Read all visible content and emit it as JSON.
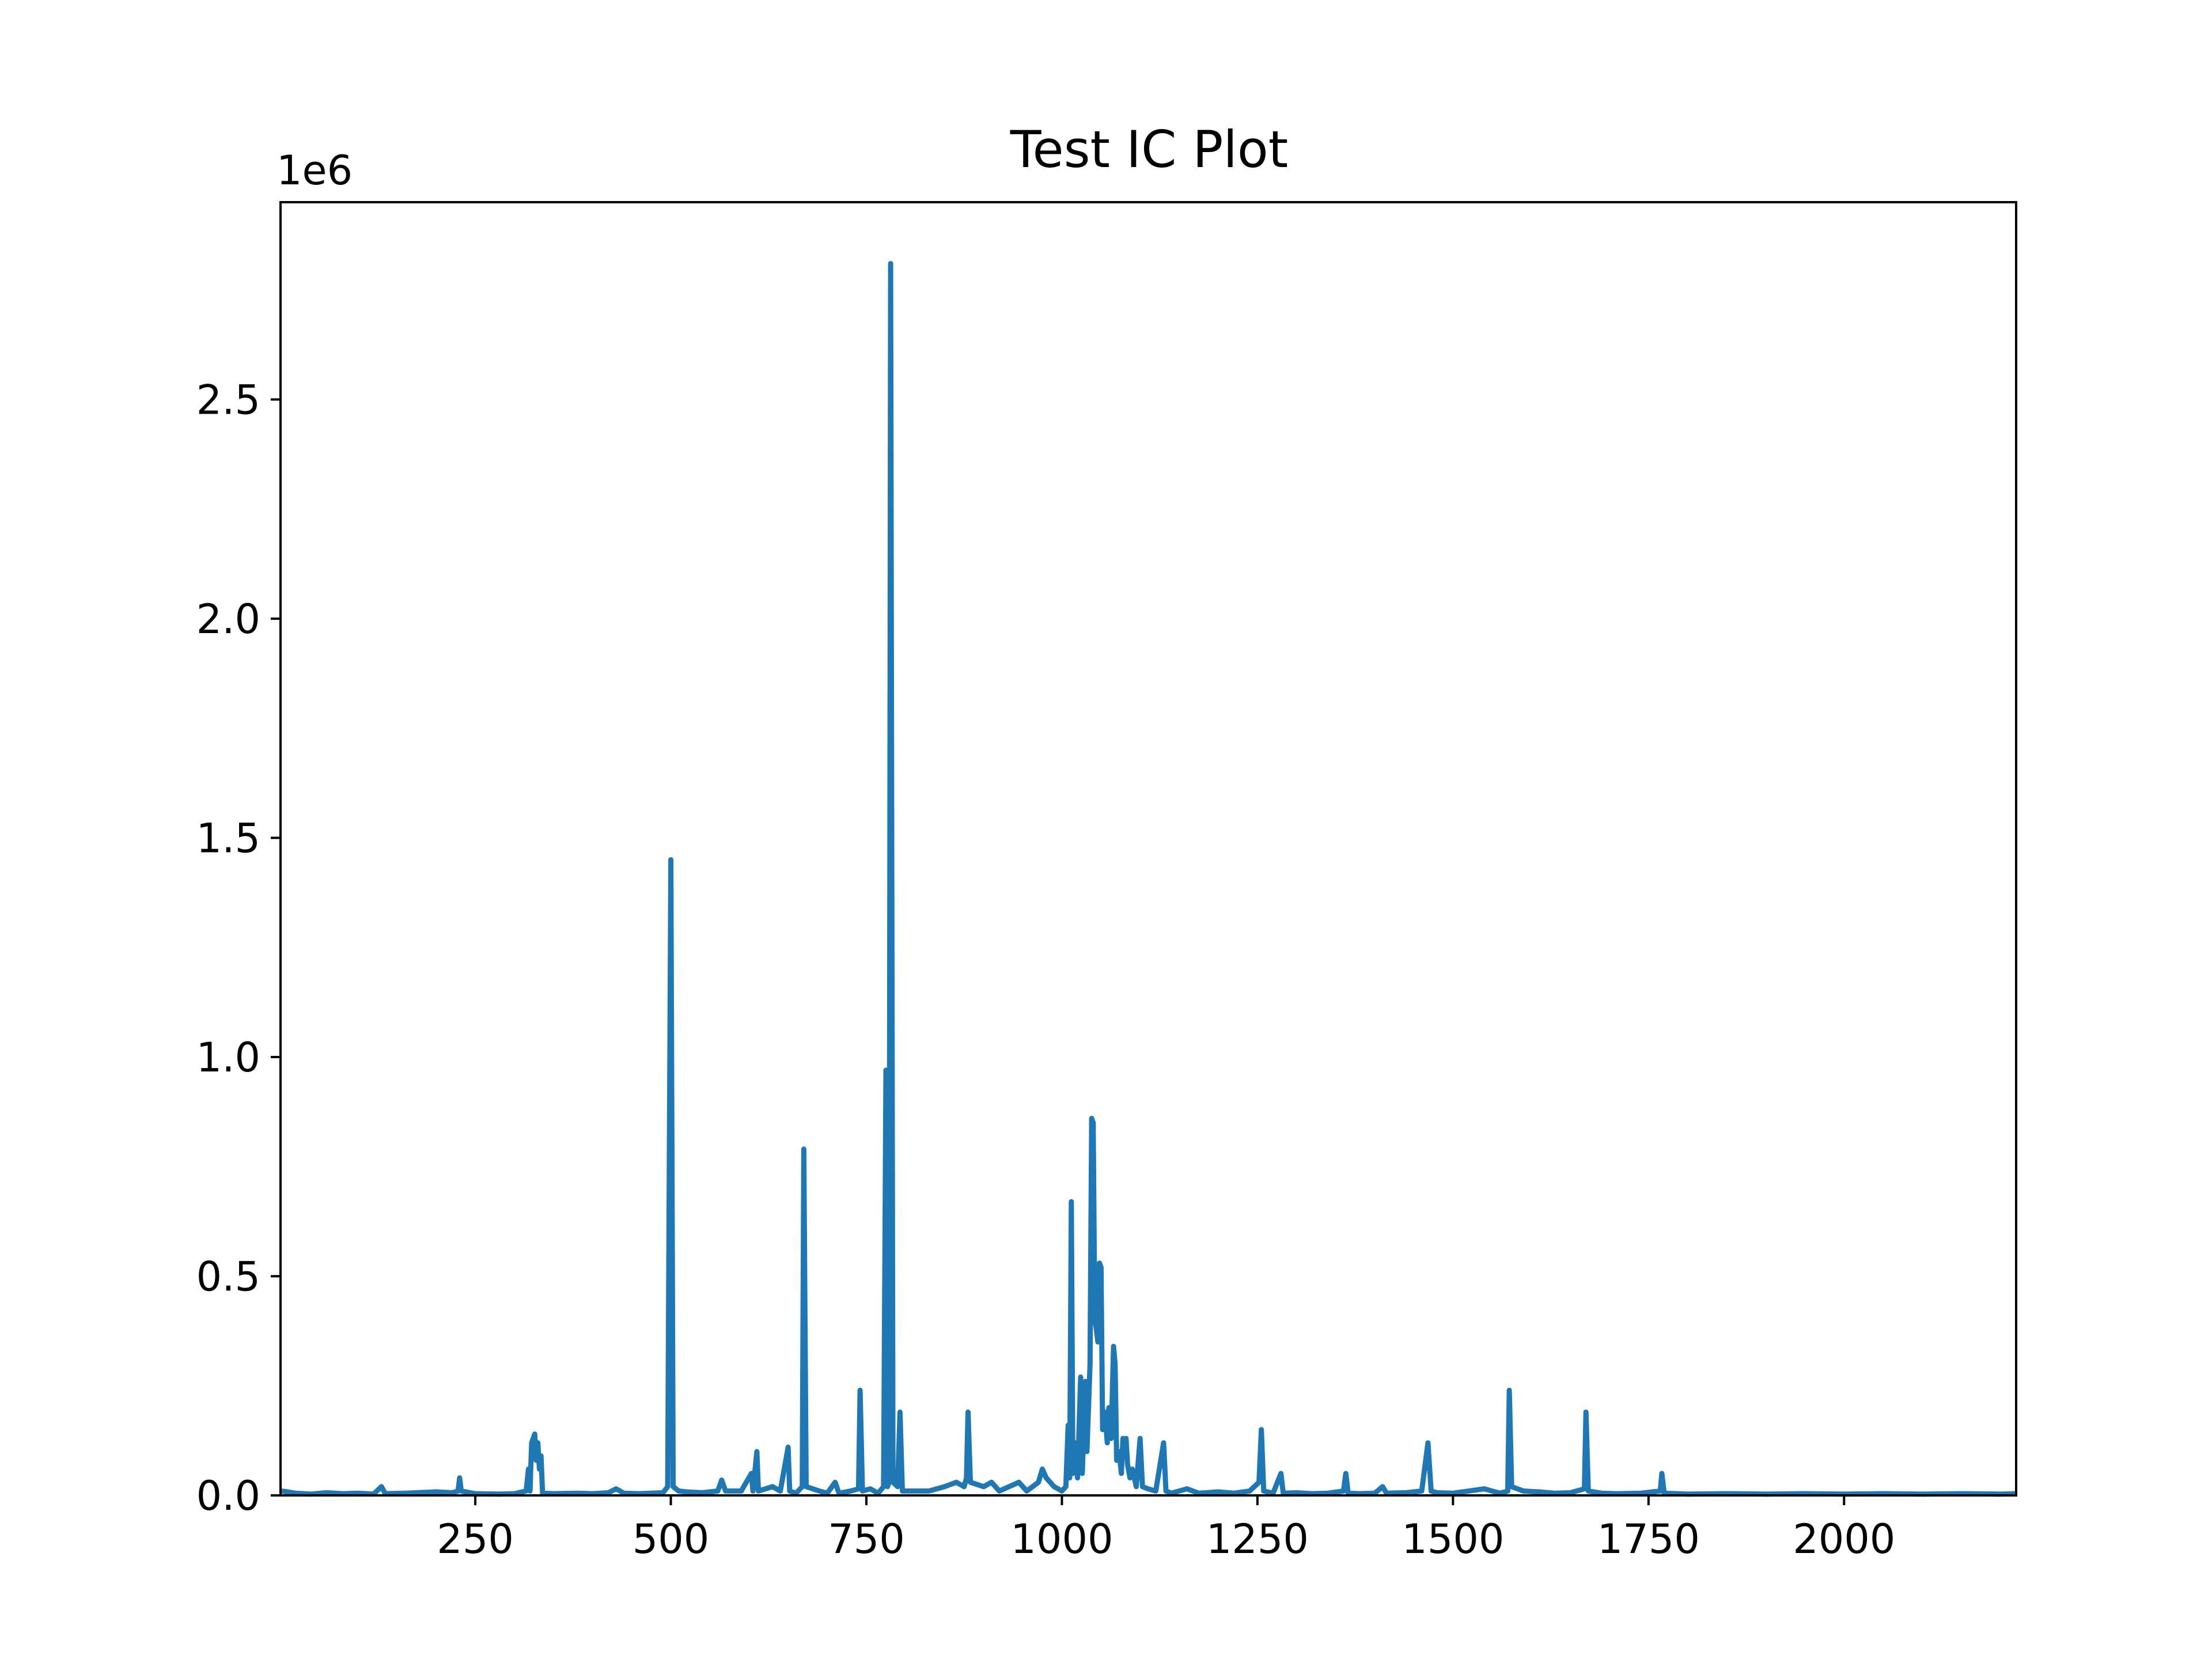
{
  "chart_data": {
    "type": "line",
    "title": "Test IC Plot",
    "xlabel": "",
    "ylabel": "",
    "y_offset_text": "1e6",
    "xlim": [
      1,
      2220
    ],
    "ylim": [
      0,
      2.95
    ],
    "x_ticks": [
      250,
      500,
      750,
      1000,
      1250,
      1500,
      1750,
      2000
    ],
    "x_tick_labels": [
      "250",
      "500",
      "750",
      "1000",
      "1250",
      "1500",
      "1750",
      "2000"
    ],
    "y_ticks": [
      0.0,
      0.5,
      1.0,
      1.5,
      2.0,
      2.5
    ],
    "y_tick_labels": [
      "0.0",
      "0.5",
      "1.0",
      "1.5",
      "2.0",
      "2.5"
    ],
    "grid": false,
    "legend": "none",
    "series": [
      {
        "color": "#1f77b4",
        "points": [
          [
            1,
            0.01
          ],
          [
            10,
            0.008
          ],
          [
            20,
            0.005
          ],
          [
            40,
            0.003
          ],
          [
            60,
            0.006
          ],
          [
            80,
            0.004
          ],
          [
            100,
            0.005
          ],
          [
            120,
            0.003
          ],
          [
            130,
            0.02
          ],
          [
            135,
            0.004
          ],
          [
            160,
            0.005
          ],
          [
            200,
            0.008
          ],
          [
            220,
            0.006
          ],
          [
            228,
            0.01
          ],
          [
            230,
            0.04
          ],
          [
            232,
            0.01
          ],
          [
            250,
            0.004
          ],
          [
            280,
            0.003
          ],
          [
            300,
            0.004
          ],
          [
            315,
            0.01
          ],
          [
            318,
            0.06
          ],
          [
            320,
            0.01
          ],
          [
            322,
            0.12
          ],
          [
            324,
            0.13
          ],
          [
            326,
            0.14
          ],
          [
            328,
            0.08
          ],
          [
            330,
            0.12
          ],
          [
            332,
            0.06
          ],
          [
            334,
            0.09
          ],
          [
            336,
            0.005
          ],
          [
            350,
            0.004
          ],
          [
            380,
            0.005
          ],
          [
            400,
            0.004
          ],
          [
            420,
            0.006
          ],
          [
            430,
            0.015
          ],
          [
            440,
            0.005
          ],
          [
            460,
            0.004
          ],
          [
            490,
            0.006
          ],
          [
            496,
            0.02
          ],
          [
            500,
            1.45
          ],
          [
            503,
            0.02
          ],
          [
            510,
            0.01
          ],
          [
            520,
            0.008
          ],
          [
            540,
            0.006
          ],
          [
            560,
            0.01
          ],
          [
            565,
            0.035
          ],
          [
            570,
            0.01
          ],
          [
            590,
            0.01
          ],
          [
            603,
            0.05
          ],
          [
            605,
            0.01
          ],
          [
            610,
            0.1
          ],
          [
            612,
            0.01
          ],
          [
            630,
            0.02
          ],
          [
            640,
            0.01
          ],
          [
            650,
            0.11
          ],
          [
            652,
            0.01
          ],
          [
            660,
            0.005
          ],
          [
            668,
            0.02
          ],
          [
            670,
            0.79
          ],
          [
            673,
            0.02
          ],
          [
            690,
            0.01
          ],
          [
            700,
            0.005
          ],
          [
            710,
            0.03
          ],
          [
            715,
            0.005
          ],
          [
            730,
            0.01
          ],
          [
            740,
            0.015
          ],
          [
            742,
            0.24
          ],
          [
            745,
            0.01
          ],
          [
            755,
            0.015
          ],
          [
            765,
            0.005
          ],
          [
            772,
            0.02
          ],
          [
            775,
            0.97
          ],
          [
            777,
            0.02
          ],
          [
            779,
            0.03
          ],
          [
            781,
            2.81
          ],
          [
            784,
            0.03
          ],
          [
            790,
            0.02
          ],
          [
            793,
            0.19
          ],
          [
            796,
            0.01
          ],
          [
            810,
            0.01
          ],
          [
            830,
            0.01
          ],
          [
            850,
            0.02
          ],
          [
            865,
            0.03
          ],
          [
            875,
            0.02
          ],
          [
            878,
            0.04
          ],
          [
            880,
            0.19
          ],
          [
            883,
            0.03
          ],
          [
            900,
            0.02
          ],
          [
            910,
            0.03
          ],
          [
            920,
            0.01
          ],
          [
            945,
            0.03
          ],
          [
            955,
            0.01
          ],
          [
            970,
            0.03
          ],
          [
            975,
            0.06
          ],
          [
            980,
            0.04
          ],
          [
            990,
            0.02
          ],
          [
            1000,
            0.01
          ],
          [
            1005,
            0.02
          ],
          [
            1008,
            0.16
          ],
          [
            1010,
            0.04
          ],
          [
            1012,
            0.67
          ],
          [
            1014,
            0.05
          ],
          [
            1018,
            0.12
          ],
          [
            1020,
            0.04
          ],
          [
            1024,
            0.27
          ],
          [
            1026,
            0.05
          ],
          [
            1030,
            0.26
          ],
          [
            1032,
            0.1
          ],
          [
            1036,
            0.3
          ],
          [
            1038,
            0.86
          ],
          [
            1040,
            0.85
          ],
          [
            1042,
            0.4
          ],
          [
            1044,
            0.38
          ],
          [
            1046,
            0.35
          ],
          [
            1048,
            0.53
          ],
          [
            1050,
            0.52
          ],
          [
            1052,
            0.15
          ],
          [
            1055,
            0.19
          ],
          [
            1058,
            0.12
          ],
          [
            1060,
            0.2
          ],
          [
            1063,
            0.13
          ],
          [
            1066,
            0.34
          ],
          [
            1068,
            0.3
          ],
          [
            1070,
            0.08
          ],
          [
            1073,
            0.1
          ],
          [
            1076,
            0.05
          ],
          [
            1078,
            0.13
          ],
          [
            1080,
            0.12
          ],
          [
            1082,
            0.13
          ],
          [
            1084,
            0.07
          ],
          [
            1087,
            0.04
          ],
          [
            1090,
            0.06
          ],
          [
            1095,
            0.02
          ],
          [
            1100,
            0.13
          ],
          [
            1103,
            0.02
          ],
          [
            1110,
            0.015
          ],
          [
            1120,
            0.01
          ],
          [
            1130,
            0.12
          ],
          [
            1133,
            0.01
          ],
          [
            1140,
            0.005
          ],
          [
            1160,
            0.015
          ],
          [
            1175,
            0.005
          ],
          [
            1200,
            0.008
          ],
          [
            1220,
            0.005
          ],
          [
            1240,
            0.01
          ],
          [
            1252,
            0.03
          ],
          [
            1255,
            0.15
          ],
          [
            1258,
            0.01
          ],
          [
            1270,
            0.005
          ],
          [
            1280,
            0.05
          ],
          [
            1283,
            0.005
          ],
          [
            1300,
            0.006
          ],
          [
            1320,
            0.004
          ],
          [
            1340,
            0.005
          ],
          [
            1360,
            0.01
          ],
          [
            1363,
            0.05
          ],
          [
            1366,
            0.005
          ],
          [
            1380,
            0.004
          ],
          [
            1400,
            0.005
          ],
          [
            1410,
            0.02
          ],
          [
            1415,
            0.005
          ],
          [
            1440,
            0.006
          ],
          [
            1460,
            0.01
          ],
          [
            1468,
            0.12
          ],
          [
            1472,
            0.01
          ],
          [
            1480,
            0.006
          ],
          [
            1500,
            0.005
          ],
          [
            1520,
            0.01
          ],
          [
            1540,
            0.015
          ],
          [
            1550,
            0.01
          ],
          [
            1560,
            0.005
          ],
          [
            1570,
            0.01
          ],
          [
            1572,
            0.24
          ],
          [
            1575,
            0.02
          ],
          [
            1590,
            0.01
          ],
          [
            1610,
            0.008
          ],
          [
            1630,
            0.005
          ],
          [
            1650,
            0.006
          ],
          [
            1668,
            0.015
          ],
          [
            1670,
            0.19
          ],
          [
            1673,
            0.01
          ],
          [
            1690,
            0.005
          ],
          [
            1710,
            0.004
          ],
          [
            1740,
            0.005
          ],
          [
            1765,
            0.01
          ],
          [
            1767,
            0.05
          ],
          [
            1770,
            0.005
          ],
          [
            1800,
            0.003
          ],
          [
            1850,
            0.004
          ],
          [
            1900,
            0.003
          ],
          [
            1950,
            0.004
          ],
          [
            2000,
            0.003
          ],
          [
            2050,
            0.004
          ],
          [
            2100,
            0.003
          ],
          [
            2150,
            0.004
          ],
          [
            2200,
            0.003
          ],
          [
            2220,
            0.004
          ]
        ]
      }
    ]
  }
}
